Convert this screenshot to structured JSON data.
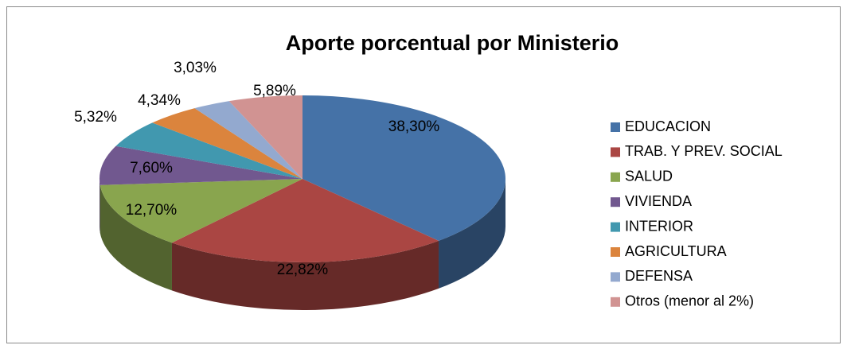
{
  "chart_data": {
    "type": "pie",
    "title": "Aporte porcentual por Ministerio",
    "categories": [
      "EDUCACION",
      "TRAB. Y PREV. SOCIAL",
      "SALUD",
      "VIVIENDA",
      "INTERIOR",
      "AGRICULTURA",
      "DEFENSA",
      "Otros (menor al 2%)"
    ],
    "values": [
      38.3,
      22.82,
      12.7,
      7.6,
      5.32,
      4.34,
      3.03,
      5.89
    ],
    "value_labels": [
      "38,30%",
      "22,82%",
      "12,70%",
      "7,60%",
      "5,32%",
      "4,34%",
      "3,03%",
      "5,89%"
    ],
    "colors": [
      "#4572a7",
      "#aa4643",
      "#89a54e",
      "#71588f",
      "#4198af",
      "#db843d",
      "#93a9cf",
      "#d19392"
    ],
    "legend": "right"
  }
}
